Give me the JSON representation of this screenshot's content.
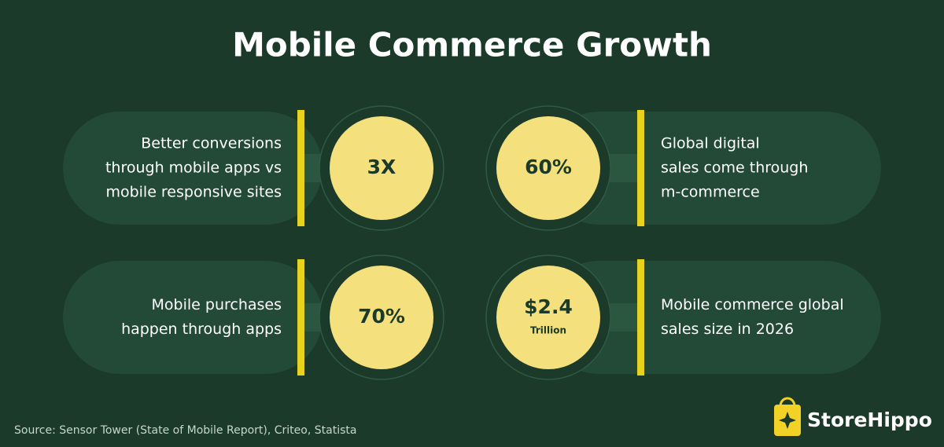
{
  "title": "Mobile Commerce Growth",
  "stats": [
    {
      "value": "3X",
      "description": [
        "Better conversions",
        "through mobile apps vs",
        "mobile responsive sites"
      ]
    },
    {
      "value": "60%",
      "description": [
        "Global digital",
        "sales come through",
        "m-commerce"
      ]
    },
    {
      "value": "70%",
      "description": [
        "Mobile purchases",
        "happen through apps"
      ]
    },
    {
      "value": "$2.4",
      "sublabel": "Trillion",
      "description": [
        "Mobile commerce global",
        "sales size in 2026"
      ]
    }
  ],
  "source": "Source: Sensor Tower (State of Mobile Report), Criteo, Statista",
  "brand": "StoreHippo"
}
